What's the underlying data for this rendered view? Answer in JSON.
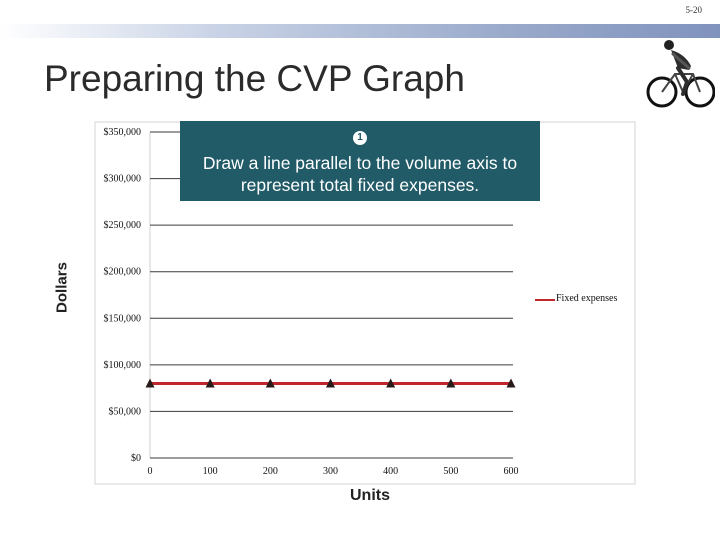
{
  "slide": {
    "page_number": "5-20",
    "title": "Preparing the CVP Graph"
  },
  "callout": {
    "number": "1",
    "text": "Draw a line parallel to the volume axis to represent total fixed expenses."
  },
  "chart_data": {
    "type": "line",
    "xlabel": "Units",
    "ylabel": "Dollars",
    "x": [
      0,
      100,
      200,
      300,
      400,
      500,
      600
    ],
    "x_tick_labels": [
      "0",
      "100",
      "200",
      "300",
      "400",
      "500",
      "600"
    ],
    "ylim": [
      0,
      350000
    ],
    "y_ticks": [
      0,
      50000,
      100000,
      150000,
      200000,
      250000,
      300000,
      350000
    ],
    "y_tick_labels": [
      "$0",
      "$50,000",
      "$100,000",
      "$150,000",
      "$200,000",
      "$250,000",
      "$300,000",
      "$350,000"
    ],
    "grid": true,
    "legend_position": "right",
    "series": [
      {
        "name": "Fixed expenses",
        "color": "#c0262b",
        "marker_color": "#2b1a1a",
        "values": [
          80000,
          80000,
          80000,
          80000,
          80000,
          80000,
          80000
        ]
      }
    ]
  }
}
